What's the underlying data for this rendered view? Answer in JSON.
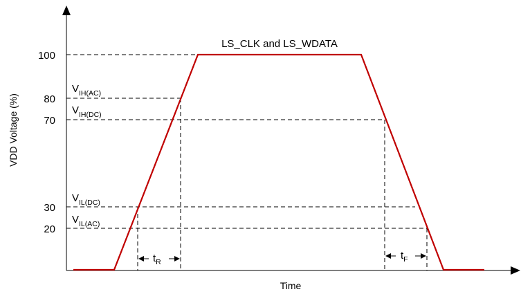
{
  "diagram": {
    "title": "LS_CLK and LS_WDATA",
    "y_axis_label": "VDD Voltage (%)",
    "x_axis_label": "Time",
    "y_ticks": [
      "100",
      "80",
      "70",
      "30",
      "20"
    ],
    "levels": {
      "vih_ac": {
        "main": "V",
        "sub": "IH(AC)"
      },
      "vih_dc": {
        "main": "V",
        "sub": "IH(DC)"
      },
      "vil_dc": {
        "main": "V",
        "sub": "IL(DC)"
      },
      "vil_ac": {
        "main": "V",
        "sub": "IL(AC)"
      }
    },
    "rise_time": {
      "main": "t",
      "sub": "R"
    },
    "fall_time": {
      "main": "t",
      "sub": "F"
    },
    "waveform_color": "#c00000"
  }
}
